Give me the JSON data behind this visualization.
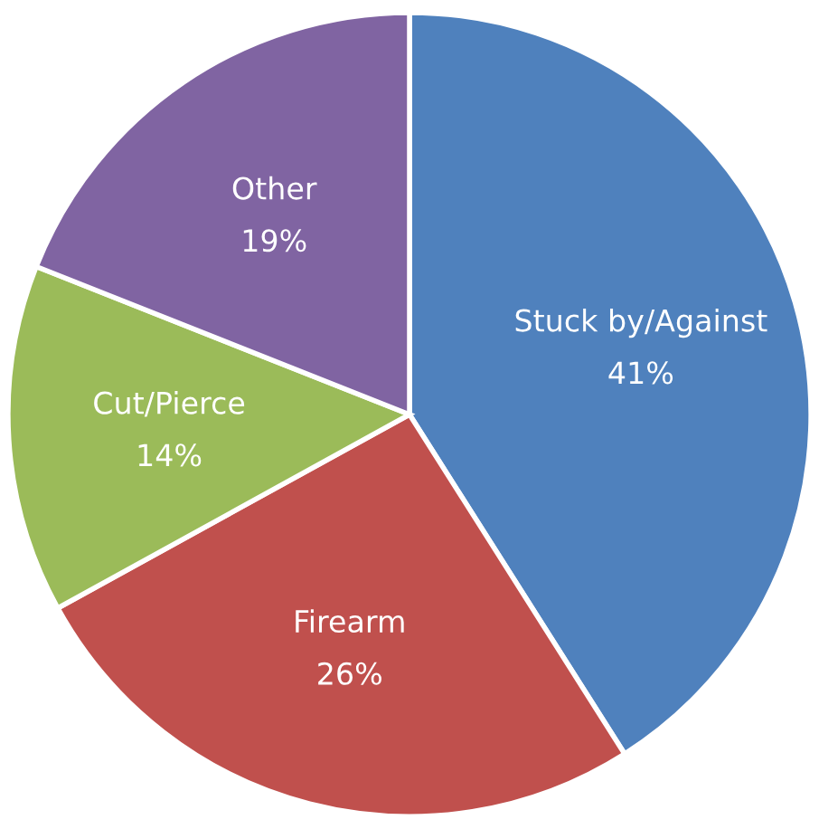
{
  "chart_data": {
    "type": "pie",
    "categories": [
      "Stuck by/Against",
      "Firearm",
      "Cut/Pierce",
      "Other"
    ],
    "values": [
      41,
      26,
      14,
      19
    ],
    "colors": [
      "#4f81bd",
      "#c0504d",
      "#9bbb59",
      "#8064a2"
    ],
    "value_labels": [
      "41%",
      "26%",
      "14%",
      "19%"
    ],
    "legend": false
  }
}
